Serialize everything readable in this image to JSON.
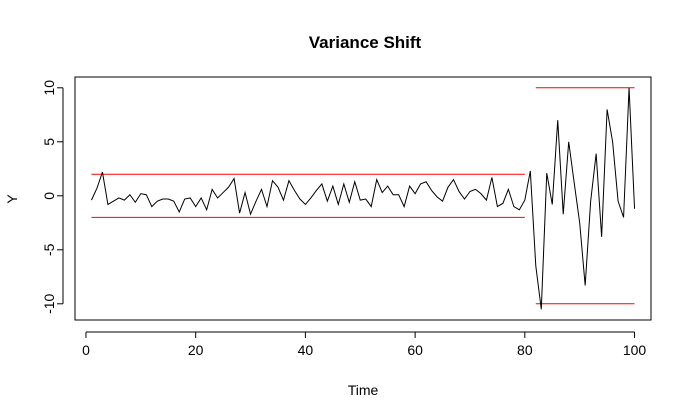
{
  "chart_data": {
    "type": "line",
    "title": "Variance Shift",
    "xlabel": "Time",
    "ylabel": "Y",
    "xlim": [
      -2,
      103
    ],
    "ylim": [
      -11.5,
      11
    ],
    "x_ticks": [
      0,
      20,
      40,
      60,
      80,
      100
    ],
    "y_ticks": [
      10,
      5,
      0,
      -5,
      -10
    ],
    "grid": false,
    "legend": "none",
    "colors": {
      "series": "#000000",
      "bounds": "#ff0000",
      "axis": "#000000"
    },
    "series": [
      {
        "x": [
          1,
          2,
          3,
          4,
          5,
          6,
          7,
          8,
          9,
          10,
          11,
          12,
          13,
          14,
          15,
          16,
          17,
          18,
          19,
          20,
          21,
          22,
          23,
          24,
          25,
          26,
          27,
          28,
          29,
          30,
          31,
          32,
          33,
          34,
          35,
          36,
          37,
          38,
          39,
          40,
          41,
          42,
          43,
          44,
          45,
          46,
          47,
          48,
          49,
          50,
          51,
          52,
          53,
          54,
          55,
          56,
          57,
          58,
          59,
          60,
          61,
          62,
          63,
          64,
          65,
          66,
          67,
          68,
          69,
          70,
          71,
          72,
          73,
          74,
          75,
          76,
          77,
          78,
          79,
          80,
          81,
          82,
          83,
          84,
          85,
          86,
          87,
          88,
          89,
          90,
          91,
          92,
          93,
          94,
          95,
          96,
          97,
          98,
          99,
          100
        ],
        "y": [
          -0.4,
          0.7,
          2.2,
          -0.8,
          -0.5,
          -0.2,
          -0.4,
          0.1,
          -0.6,
          0.2,
          0.1,
          -1.0,
          -0.5,
          -0.3,
          -0.3,
          -0.5,
          -1.5,
          -0.3,
          -0.2,
          -1.0,
          -0.2,
          -1.3,
          0.6,
          -0.2,
          0.3,
          0.8,
          1.6,
          -1.6,
          0.3,
          -1.7,
          -0.5,
          0.6,
          -1.0,
          1.4,
          0.8,
          -0.4,
          1.4,
          0.5,
          -0.3,
          -0.8,
          -0.2,
          0.5,
          1.1,
          -0.5,
          0.9,
          -0.8,
          1.1,
          -0.6,
          1.3,
          -0.4,
          -0.3,
          -1.0,
          1.5,
          0.3,
          0.9,
          0.1,
          0.1,
          -1.0,
          0.9,
          0.2,
          1.1,
          1.3,
          0.5,
          -0.1,
          -0.5,
          0.8,
          1.5,
          0.4,
          -0.3,
          0.4,
          0.6,
          0.2,
          -0.4,
          1.7,
          -1.0,
          -0.7,
          0.6,
          -1.0,
          -1.3,
          -0.4,
          2.3,
          -6.5,
          -10.5,
          2.1,
          -0.8,
          7.0,
          -1.7,
          5.0,
          1.2,
          -2.5,
          -8.3,
          -0.5,
          3.9,
          -3.8,
          8.0,
          5.0,
          -0.5,
          -2.0,
          10.0,
          -1.2
        ]
      }
    ],
    "reference_lines": [
      {
        "x": [
          1,
          80
        ],
        "y": 2
      },
      {
        "x": [
          1,
          80
        ],
        "y": -2
      },
      {
        "x": [
          82,
          100
        ],
        "y": 10
      },
      {
        "x": [
          82,
          100
        ],
        "y": -10
      }
    ]
  }
}
